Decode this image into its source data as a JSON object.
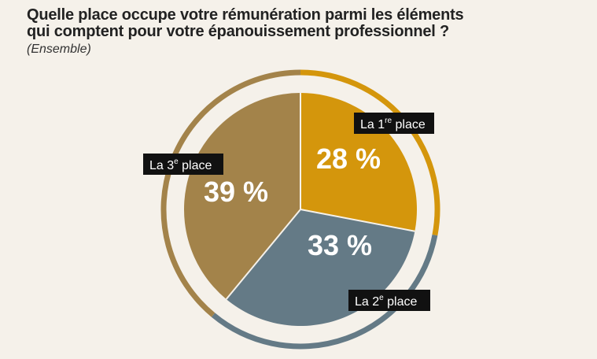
{
  "chart_data": {
    "type": "pie",
    "title_line1": "Quelle place occupe votre rémunération parmi les éléments",
    "title_line2": "qui comptent pour votre épanouissement professionnel ?",
    "subtitle": "(Ensemble)",
    "slices": [
      {
        "label_main": "La 1",
        "label_sup": "re",
        "label_tail": " place",
        "value": 28,
        "value_label": "28 %",
        "color": "#d4960c"
      },
      {
        "label_main": "La 2",
        "label_sup": "e",
        "label_tail": " place",
        "value": 33,
        "value_label": "33 %",
        "color": "#647a86"
      },
      {
        "label_main": "La 3",
        "label_sup": "e",
        "label_tail": " place",
        "value": 39,
        "value_label": "39 %",
        "color": "#a3834a"
      }
    ],
    "label_bg": "#111111"
  }
}
